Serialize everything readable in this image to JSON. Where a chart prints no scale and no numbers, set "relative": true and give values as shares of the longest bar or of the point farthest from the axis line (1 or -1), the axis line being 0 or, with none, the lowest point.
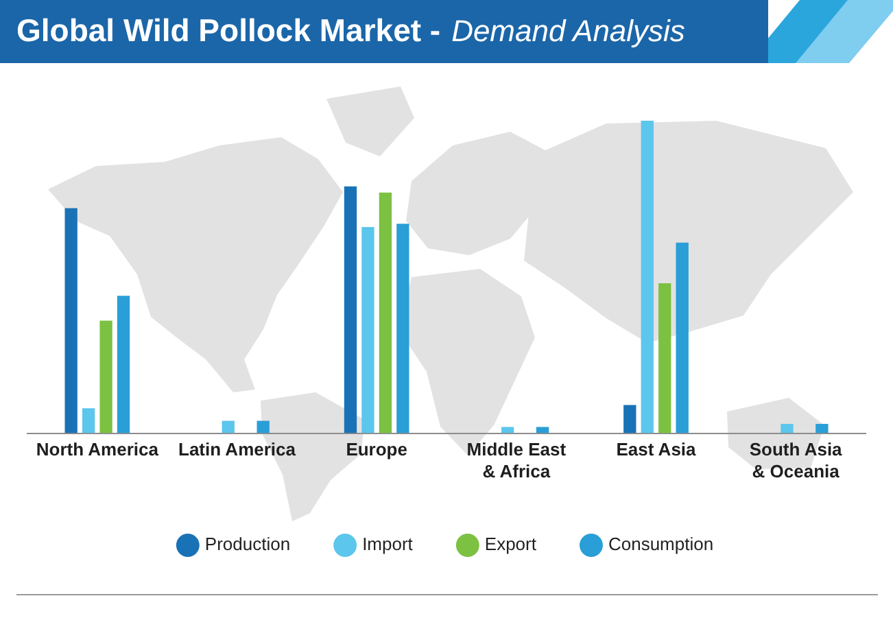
{
  "chart_data": {
    "type": "bar",
    "title": "Global Wild Pollock Market -",
    "subtitle": "Demand Analysis",
    "categories": [
      "North America",
      "Latin America",
      "Europe",
      "Middle East & Africa",
      "East Asia",
      "South Asia & Oceania"
    ],
    "relative": true,
    "series": [
      {
        "name": "Production",
        "color": "#1a72b6",
        "values": [
          0.72,
          0,
          0.79,
          0,
          0.09,
          0
        ]
      },
      {
        "name": "Import",
        "color": "#5cc6ec",
        "values": [
          0.08,
          0.04,
          0.66,
          0.02,
          1,
          0.03
        ]
      },
      {
        "name": "Export",
        "color": "#7cc142",
        "values": [
          0.36,
          0,
          0.77,
          0,
          0.48,
          0
        ]
      },
      {
        "name": "Consumption",
        "color": "#2a9ed6",
        "values": [
          0.44,
          0.04,
          0.67,
          0.02,
          0.61,
          0.03
        ]
      }
    ],
    "legend": "bottom"
  }
}
